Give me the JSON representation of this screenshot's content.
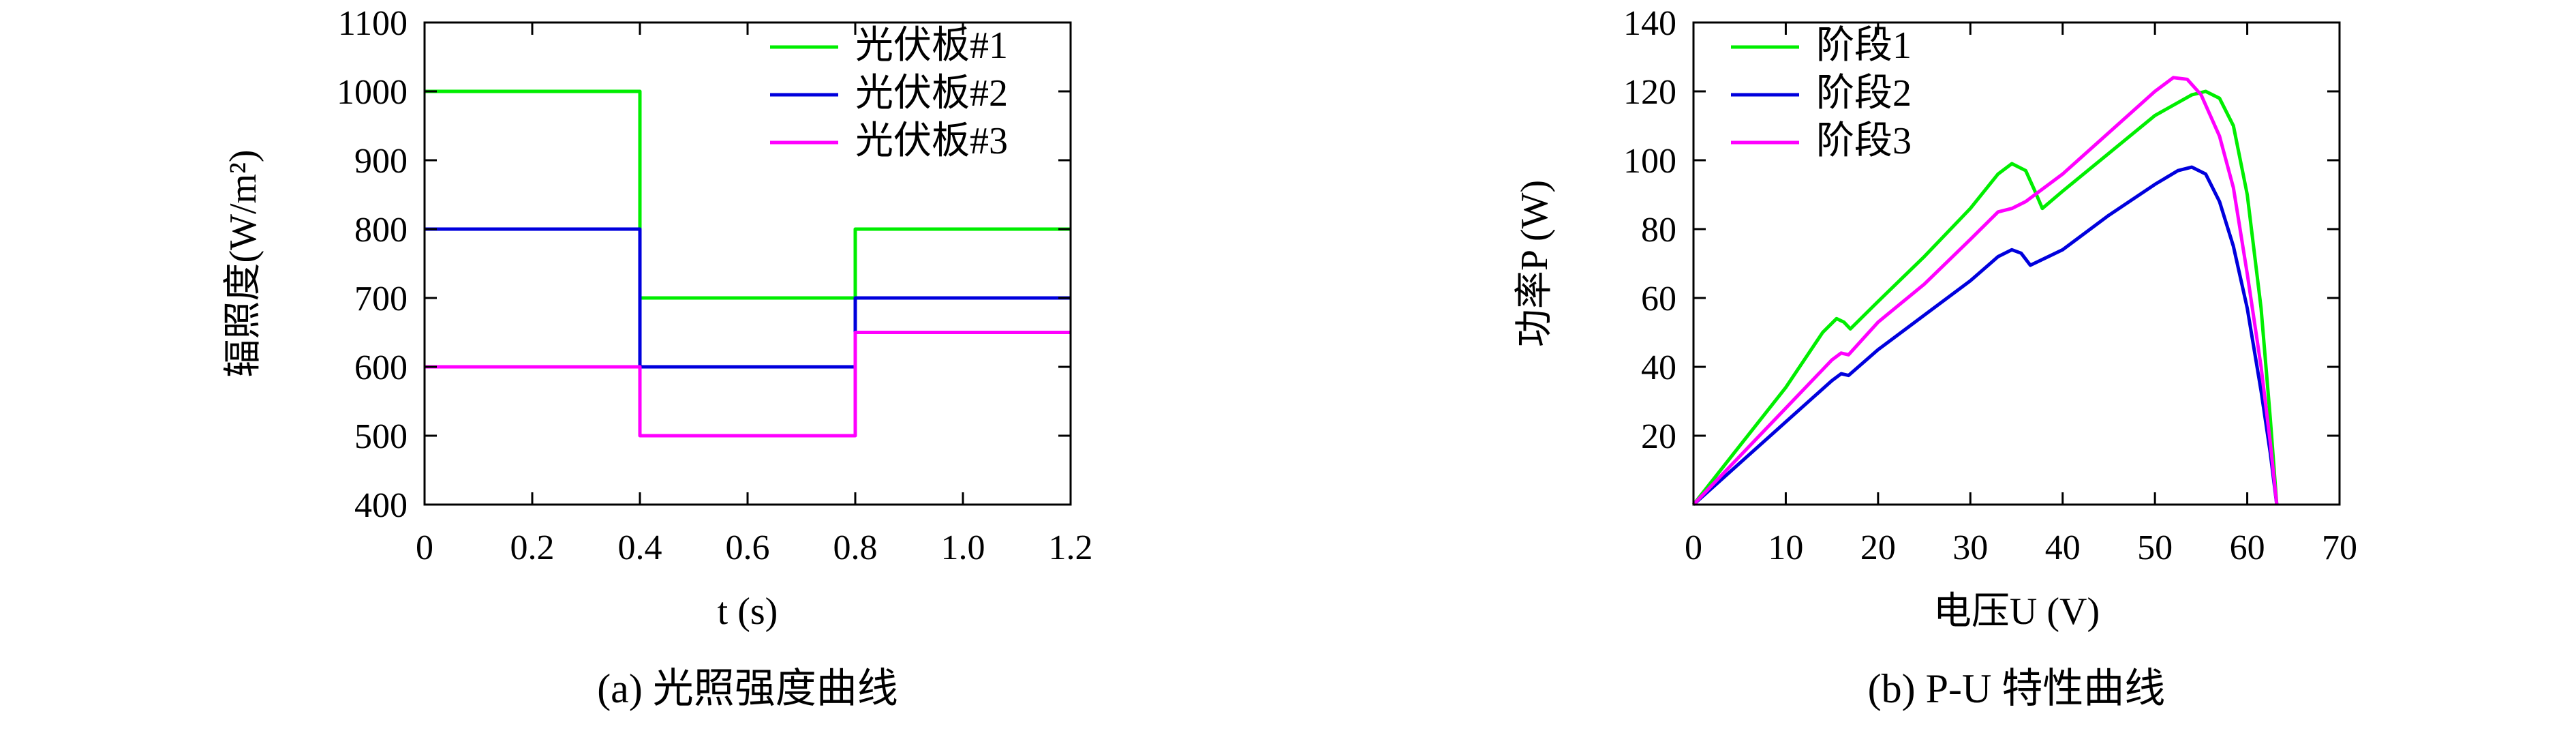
{
  "chart_data": [
    {
      "type": "line",
      "caption": "(a) 光照强度曲线",
      "xlabel": "t (s)",
      "ylabel": "辐照度(W/m²)",
      "xlim": [
        0,
        1.2
      ],
      "ylim": [
        400,
        1100
      ],
      "xticks": [
        0,
        0.2,
        0.4,
        0.6,
        0.8,
        1.0,
        1.2
      ],
      "xtick_labels": [
        "0",
        "0.2",
        "0.4",
        "0.6",
        "0.8",
        "1.0",
        "1.2"
      ],
      "yticks": [
        400,
        500,
        600,
        700,
        800,
        900,
        1000,
        1100
      ],
      "ytick_labels": [
        "400",
        "500",
        "600",
        "700",
        "800",
        "900",
        "1000",
        "1100"
      ],
      "grid": false,
      "legend_position": "top-right",
      "series": [
        {
          "name": "光伏板#1",
          "color": "#00ee00",
          "x": [
            0,
            0.4,
            0.4,
            0.8,
            0.8,
            1.2
          ],
          "y": [
            1000,
            1000,
            700,
            700,
            800,
            800
          ]
        },
        {
          "name": "光伏板#2",
          "color": "#0000dd",
          "x": [
            0,
            0.4,
            0.4,
            0.8,
            0.8,
            1.2
          ],
          "y": [
            800,
            800,
            600,
            600,
            700,
            700
          ]
        },
        {
          "name": "光伏板#3",
          "color": "#ff00ff",
          "x": [
            0,
            0.4,
            0.4,
            0.8,
            0.8,
            1.2
          ],
          "y": [
            600,
            600,
            500,
            500,
            650,
            650
          ]
        }
      ]
    },
    {
      "type": "line",
      "caption": "(b) P-U 特性曲线",
      "xlabel": "电压U (V)",
      "ylabel": "功率P (W)",
      "xlim": [
        0,
        70
      ],
      "ylim": [
        0,
        140
      ],
      "xticks": [
        0,
        10,
        20,
        30,
        40,
        50,
        60,
        70
      ],
      "xtick_labels": [
        "0",
        "10",
        "20",
        "30",
        "40",
        "50",
        "60",
        "70"
      ],
      "yticks": [
        20,
        40,
        60,
        80,
        100,
        120,
        140
      ],
      "ytick_labels": [
        "20",
        "40",
        "60",
        "80",
        "100",
        "120",
        "140"
      ],
      "grid": false,
      "legend_position": "top-left",
      "series": [
        {
          "name": "阶段1",
          "color": "#00ee00",
          "x": [
            0,
            5,
            10,
            14,
            15.5,
            16.3,
            17,
            20,
            25,
            30,
            33,
            34.5,
            36,
            37,
            37.8,
            40,
            45,
            50,
            54,
            55.5,
            57,
            58.5,
            60,
            61.5,
            62.5,
            63.2
          ],
          "y": [
            0,
            17,
            34,
            50,
            54,
            53,
            51,
            59,
            72,
            86,
            96,
            99,
            97,
            91,
            86,
            91,
            102,
            113,
            119,
            120,
            118,
            110,
            90,
            57,
            25,
            0
          ]
        },
        {
          "name": "阶段2",
          "color": "#0000dd",
          "x": [
            0,
            5,
            10,
            15,
            16,
            16.8,
            20,
            25,
            30,
            33,
            34.5,
            35.5,
            36.5,
            40,
            45,
            50,
            52.5,
            54,
            55.5,
            57,
            58.5,
            60,
            61.5,
            62.5,
            63.2
          ],
          "y": [
            0,
            12,
            24,
            36,
            38,
            37.5,
            45,
            55,
            65,
            72,
            74,
            73,
            69.5,
            74,
            84,
            93,
            97,
            98,
            96,
            88,
            75,
            57,
            33,
            15,
            0
          ]
        },
        {
          "name": "阶段3",
          "color": "#ff00ff",
          "x": [
            0,
            5,
            10,
            15,
            16,
            16.8,
            20,
            25,
            30,
            33,
            34.5,
            36,
            40,
            45,
            50,
            52,
            53.5,
            55,
            57,
            58.5,
            60,
            61.5,
            62.5,
            63.2
          ],
          "y": [
            0,
            14,
            28,
            42,
            44,
            43.5,
            53,
            64,
            77,
            85,
            86,
            88,
            96,
            108,
            120,
            124,
            123.5,
            119,
            107,
            92,
            67,
            40,
            18,
            0
          ]
        }
      ]
    }
  ]
}
